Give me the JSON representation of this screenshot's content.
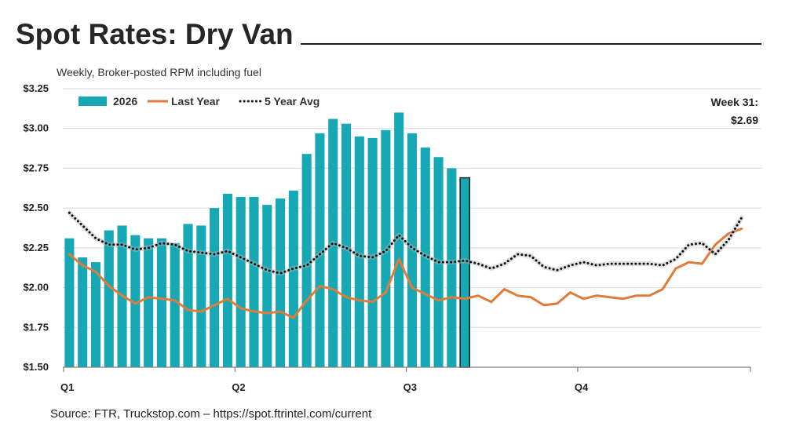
{
  "header": {
    "title": "Spot Rates: Dry Van",
    "subtitle": "Weekly, Broker-posted RPM including fuel"
  },
  "footer": {
    "source": "Source: FTR, Truckstop.com – https://spot.ftrintel.com/current"
  },
  "colors": {
    "bars": "#16a9b5",
    "last_year": "#e07b39",
    "avg": "#111111",
    "grid": "#d9d9d9"
  },
  "chart_data": {
    "type": "bar",
    "title": "Spot Rates: Dry Van",
    "subtitle": "Weekly, Broker-posted RPM including fuel",
    "ylim": [
      1.5,
      3.25
    ],
    "y_ticks": [
      {
        "value": 1.5,
        "label": "$1.50"
      },
      {
        "value": 1.75,
        "label": "$1.75"
      },
      {
        "value": 2.0,
        "label": "$2.00"
      },
      {
        "value": 2.25,
        "label": "$2.25"
      },
      {
        "value": 2.5,
        "label": "$2.50"
      },
      {
        "value": 2.75,
        "label": "$2.75"
      },
      {
        "value": 3.0,
        "label": "$3.00"
      },
      {
        "value": 3.25,
        "label": "$3.25"
      }
    ],
    "x_ticks": [
      {
        "week": 1,
        "label": "Q1"
      },
      {
        "week": 14,
        "label": "Q2"
      },
      {
        "week": 27,
        "label": "Q3"
      },
      {
        "week": 40,
        "label": "Q4"
      }
    ],
    "weeks": 53,
    "grid": true,
    "legend_position": "top-left",
    "series": [
      {
        "name": "2026",
        "type": "bar",
        "start_week": 1,
        "values": [
          2.31,
          2.19,
          2.16,
          2.36,
          2.39,
          2.33,
          2.31,
          2.31,
          2.28,
          2.4,
          2.39,
          2.5,
          2.59,
          2.57,
          2.57,
          2.52,
          2.56,
          2.61,
          2.84,
          2.97,
          3.06,
          3.03,
          2.95,
          2.94,
          2.99,
          3.1,
          2.97,
          2.88,
          2.82,
          2.75,
          2.69
        ],
        "highlight_last": true
      },
      {
        "name": "Last Year",
        "type": "line",
        "start_week": 1,
        "values": [
          2.21,
          2.14,
          2.1,
          2.01,
          1.95,
          1.9,
          1.94,
          1.93,
          1.92,
          1.86,
          1.85,
          1.89,
          1.93,
          1.87,
          1.85,
          1.84,
          1.85,
          1.81,
          1.92,
          2.01,
          1.99,
          1.94,
          1.92,
          1.91,
          1.97,
          2.18,
          2.0,
          1.96,
          1.92,
          1.94,
          1.93,
          1.95,
          1.91,
          1.99,
          1.95,
          1.94,
          1.89,
          1.9,
          1.97,
          1.93,
          1.95,
          1.94,
          1.93,
          1.95,
          1.95,
          1.99,
          2.12,
          2.16,
          2.15,
          2.27,
          2.34,
          2.37
        ]
      },
      {
        "name": "5 Year Avg",
        "type": "line",
        "style": "dotted",
        "start_week": 1,
        "values": [
          2.47,
          2.39,
          2.31,
          2.27,
          2.27,
          2.24,
          2.25,
          2.28,
          2.27,
          2.23,
          2.22,
          2.21,
          2.23,
          2.19,
          2.15,
          2.11,
          2.09,
          2.12,
          2.14,
          2.21,
          2.28,
          2.25,
          2.2,
          2.19,
          2.23,
          2.33,
          2.25,
          2.2,
          2.16,
          2.16,
          2.17,
          2.15,
          2.12,
          2.15,
          2.21,
          2.2,
          2.13,
          2.11,
          2.14,
          2.16,
          2.14,
          2.15,
          2.15,
          2.15,
          2.15,
          2.14,
          2.18,
          2.27,
          2.28,
          2.21,
          2.3,
          2.44
        ]
      }
    ],
    "annotation": {
      "line1": "Week 31:",
      "line2": "$2.69"
    }
  }
}
